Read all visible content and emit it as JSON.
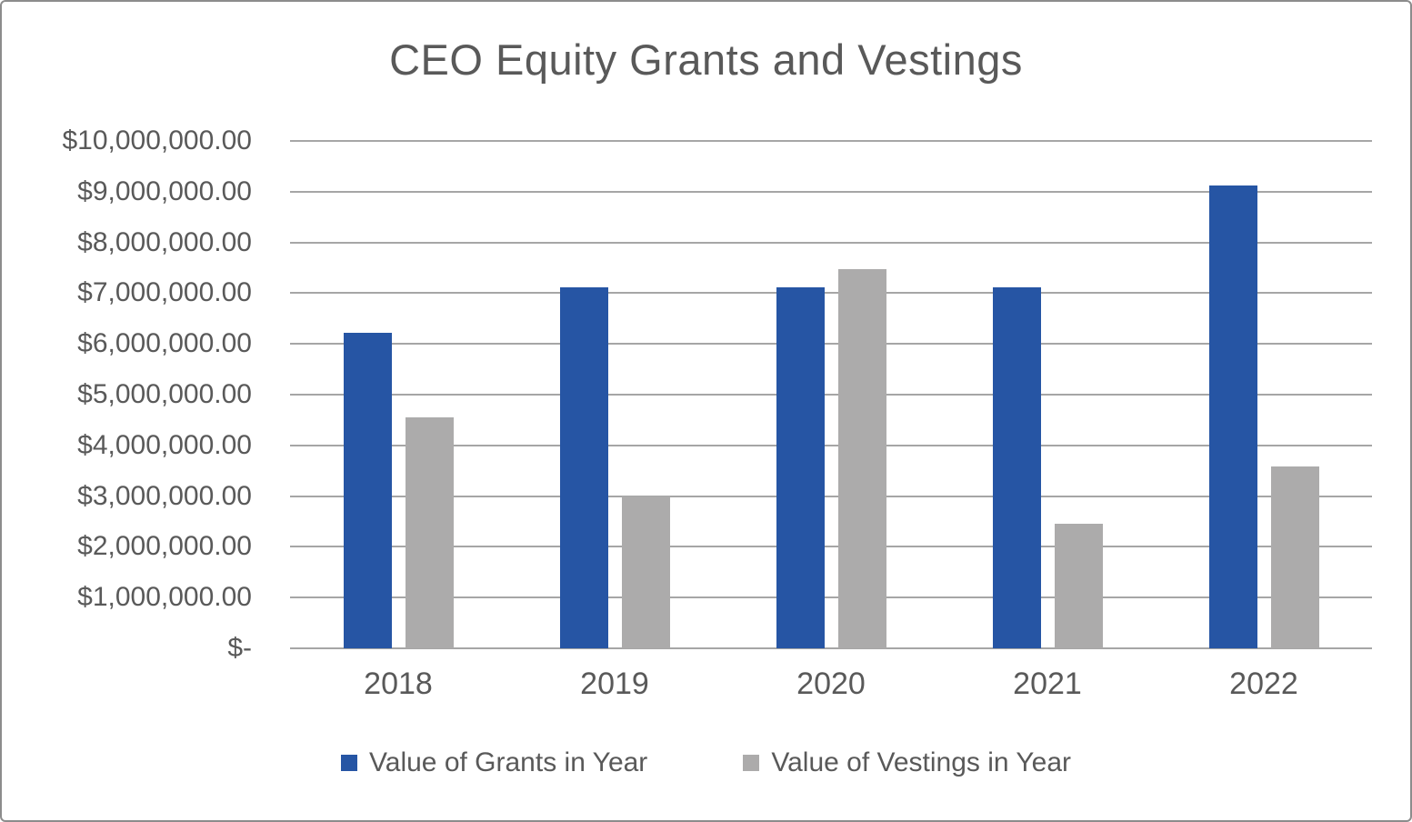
{
  "chart_data": {
    "type": "bar",
    "title": "CEO Equity Grants and Vestings",
    "categories": [
      "2018",
      "2019",
      "2020",
      "2021",
      "2022"
    ],
    "series": [
      {
        "name": "Value of Grants in Year",
        "color": "#2655A4",
        "values": [
          6220000,
          7120000,
          7120000,
          7120000,
          9130000
        ]
      },
      {
        "name": "Value of Vestings in Year",
        "color": "#ACABAB",
        "values": [
          4550000,
          3000000,
          7480000,
          2450000,
          3580000
        ]
      }
    ],
    "xlabel": "",
    "ylabel": "",
    "ylim": [
      0,
      10000000
    ],
    "y_tick_step": 1000000,
    "y_tick_labels": [
      "$10,000,000.00",
      "$9,000,000.00",
      "$8,000,000.00",
      "$7,000,000.00",
      "$6,000,000.00",
      "$5,000,000.00",
      "$4,000,000.00",
      "$3,000,000.00",
      "$2,000,000.00",
      "$1,000,000.00",
      "$-"
    ],
    "grid": "horizontal",
    "legend_position": "bottom",
    "colors": {
      "text": "#595959",
      "gridline": "#A6A6A6",
      "frame_border": "#8C8C8C",
      "background": "#FFFFFF"
    }
  }
}
